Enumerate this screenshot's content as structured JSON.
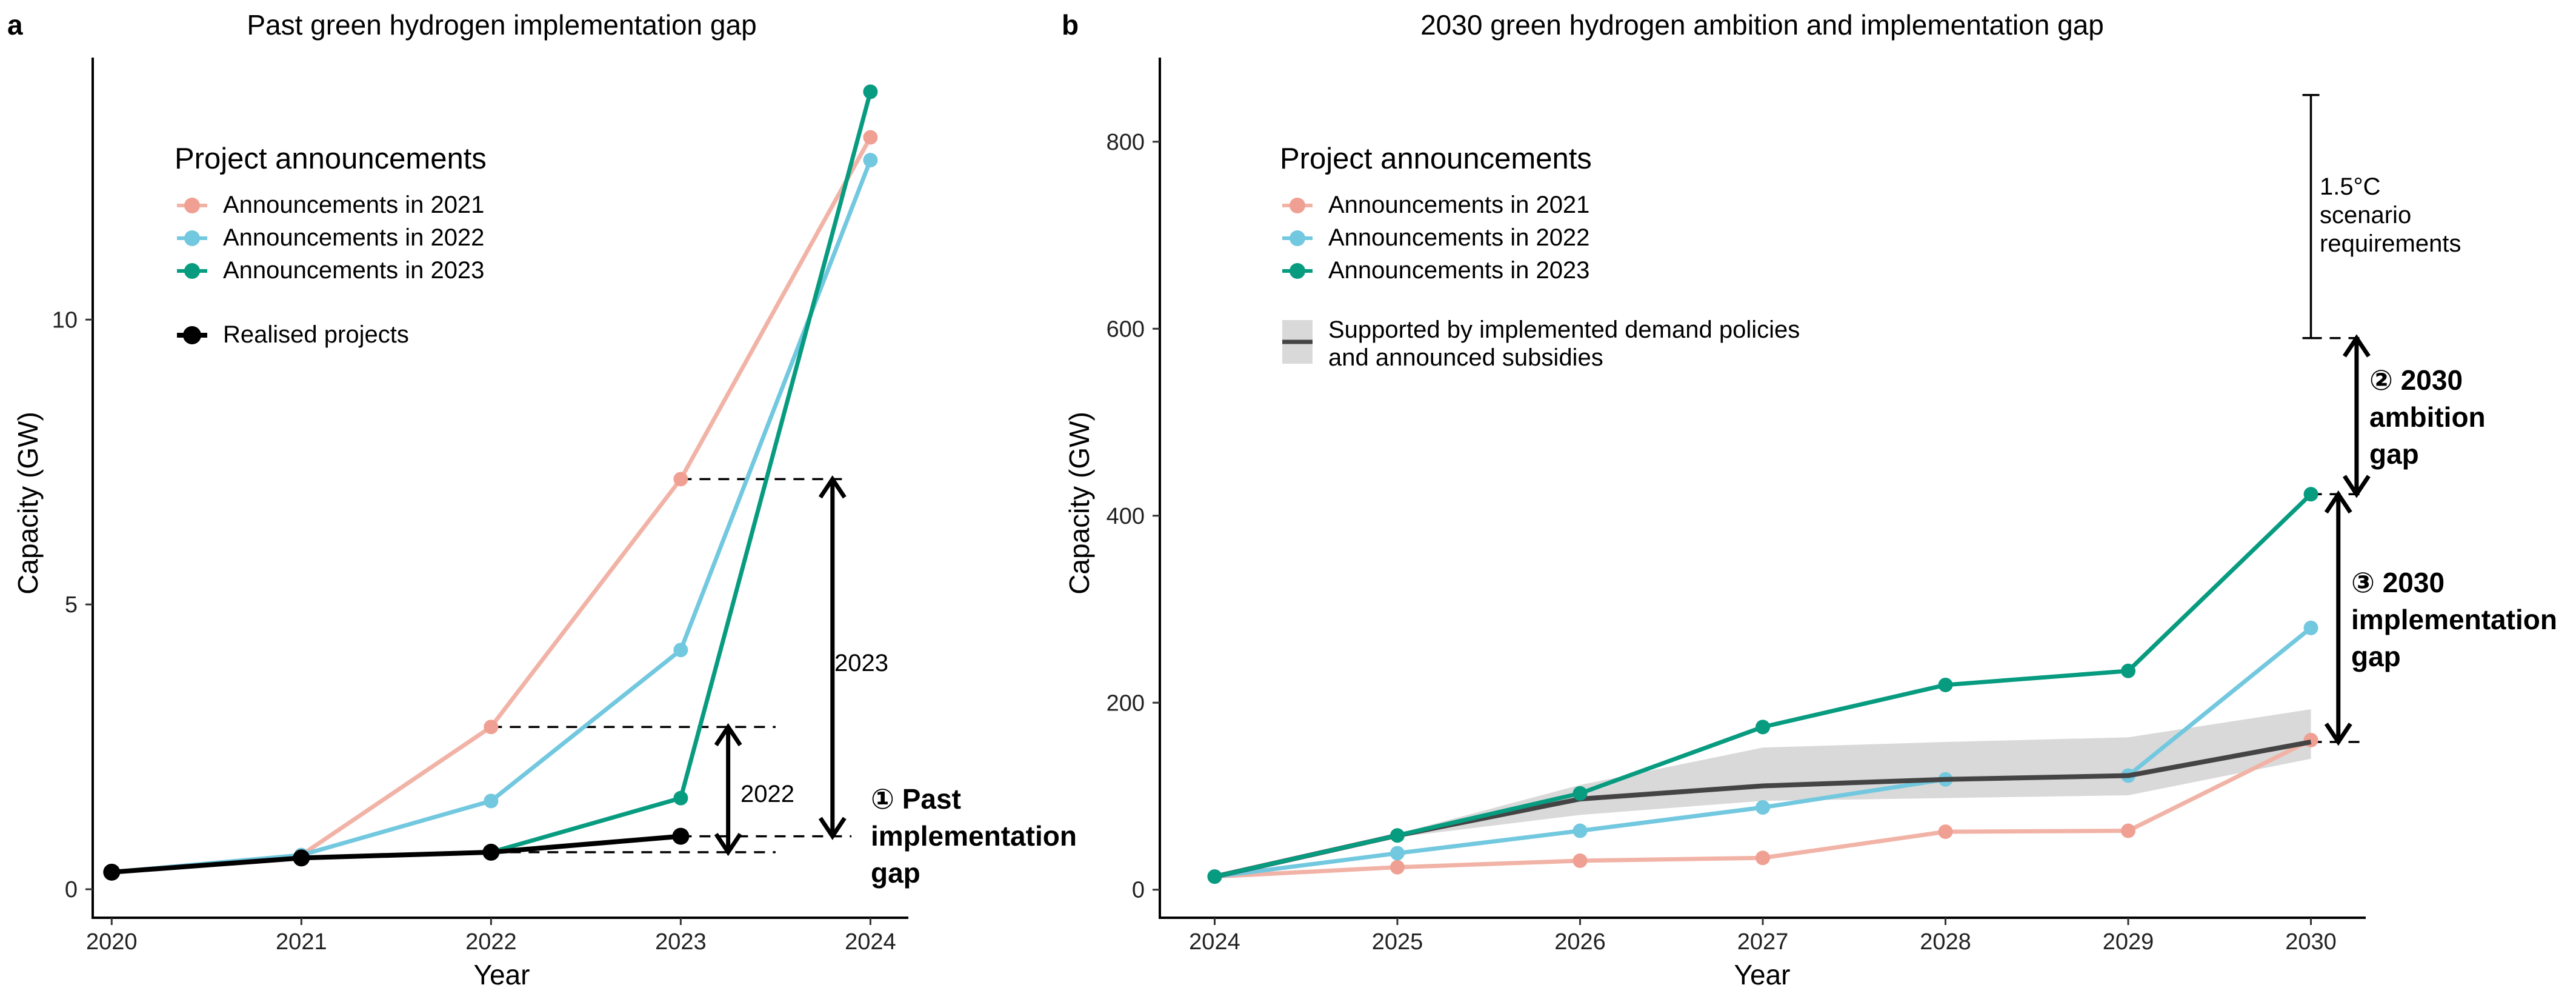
{
  "colors": {
    "announcements_2021": "#F0A093",
    "announcements_2021_line": "#F2B3A7",
    "announcements_2022": "#72C8DF",
    "announcements_2023": "#079B80",
    "realised": "#000000",
    "supported_line": "#444444",
    "supported_band": "#D9D9D9"
  },
  "chart_data": [
    {
      "panel": "a",
      "type": "line",
      "title": "Past green hydrogen implementation gap",
      "xlabel": "Year",
      "ylabel": "Capacity (GW)",
      "x": [
        2020,
        2021,
        2022,
        2023,
        2024
      ],
      "xlim": [
        2019.9,
        2024.2
      ],
      "ylim": [
        -0.5,
        14.6
      ],
      "yticks": [
        0,
        5,
        10
      ],
      "grid": false,
      "legend": {
        "position": "top-left",
        "title": "Project announcements",
        "entries": [
          "Announcements in 2021",
          "Announcements in 2022",
          "Announcements in 2023"
        ],
        "extra_entry": "Realised projects"
      },
      "series": [
        {
          "name": "Announcements in 2021",
          "key": "announcements_2021",
          "x": [
            2021,
            2022,
            2023,
            2024
          ],
          "values": [
            0.6,
            2.85,
            7.2,
            13.2
          ]
        },
        {
          "name": "Announcements in 2022",
          "key": "announcements_2022",
          "x": [
            2020,
            2021,
            2022,
            2023,
            2024
          ],
          "values": [
            0.3,
            0.6,
            1.55,
            4.2,
            12.8
          ]
        },
        {
          "name": "Announcements in 2023",
          "key": "announcements_2023",
          "x": [
            2022,
            2023,
            2024
          ],
          "values": [
            0.65,
            1.6,
            14.0
          ]
        },
        {
          "name": "Realised projects",
          "key": "realised",
          "x": [
            2020,
            2021,
            2022,
            2023
          ],
          "values": [
            0.3,
            0.55,
            0.65,
            0.93
          ]
        }
      ],
      "annotations": {
        "gap_2023": {
          "label": "2023",
          "x": 2023.8,
          "from": 0.93,
          "to": 7.2
        },
        "gap_2022": {
          "label": "2022",
          "x": 2023.25,
          "from": 0.65,
          "to": 2.85
        },
        "dashes": [
          {
            "x1": 2023.0,
            "x2": 2023.85,
            "y": 7.2
          },
          {
            "x1": 2022.0,
            "x2": 2023.5,
            "y": 2.85
          },
          {
            "x1": 2022.0,
            "x2": 2023.5,
            "y": 0.65
          },
          {
            "x1": 2023.0,
            "x2": 2023.9,
            "y": 0.93
          }
        ],
        "past_gap_label": [
          "① Past",
          "implementation",
          "gap"
        ]
      }
    },
    {
      "panel": "b",
      "type": "line",
      "title": "2030 green hydrogen ambition and implementation gap",
      "xlabel": "Year",
      "ylabel": "Capacity (GW)",
      "x": [
        2024,
        2025,
        2026,
        2027,
        2028,
        2029,
        2030
      ],
      "xlim": [
        2023.7,
        2030.3
      ],
      "ylim": [
        -30,
        890
      ],
      "yticks": [
        0,
        200,
        400,
        600,
        800
      ],
      "grid": false,
      "legend": {
        "position": "top-left",
        "title": "Project announcements",
        "entries": [
          "Announcements in 2021",
          "Announcements in 2022",
          "Announcements in 2023"
        ],
        "extra_entry_lines": [
          "Supported by implemented demand policies",
          "and announced subsidies"
        ]
      },
      "series": [
        {
          "name": "Announcements in 2021",
          "key": "announcements_2021",
          "x": [
            2024,
            2025,
            2026,
            2027,
            2028,
            2029,
            2030
          ],
          "values": [
            14,
            24,
            31,
            34,
            62,
            63,
            160
          ]
        },
        {
          "name": "Announcements in 2022",
          "key": "announcements_2022",
          "x": [
            2024,
            2025,
            2026,
            2027,
            2028,
            2029,
            2030
          ],
          "values": [
            14,
            39,
            63,
            88,
            118,
            122,
            280
          ]
        },
        {
          "name": "Announcements in 2023",
          "key": "announcements_2023",
          "x": [
            2024,
            2025,
            2026,
            2027,
            2028,
            2029,
            2030
          ],
          "values": [
            14,
            58,
            103,
            174,
            219,
            234,
            423
          ]
        }
      ],
      "supported": {
        "x": [
          2024,
          2025,
          2026,
          2027,
          2028,
          2029,
          2030
        ],
        "mid": [
          14,
          58,
          97,
          111,
          118,
          122,
          158
        ],
        "lower": [
          14,
          56,
          80,
          95,
          98,
          101,
          140
        ],
        "upper": [
          14,
          60,
          112,
          152,
          158,
          163,
          193
        ]
      },
      "annotations": {
        "scenario_bracket": {
          "x": 2030.0,
          "from": 590,
          "to": 850,
          "label": [
            "1.5°C",
            "scenario",
            "requirements"
          ]
        },
        "ambition_gap": {
          "x": 2030.25,
          "from": 423,
          "to": 590,
          "label": [
            "② 2030",
            "ambition",
            "gap"
          ]
        },
        "implementation_gap": {
          "x": 2030.15,
          "from": 158,
          "to": 423,
          "label": [
            "③ 2030",
            "implementation",
            "gap"
          ]
        },
        "dashes": [
          {
            "x1": 2030.0,
            "x2": 2030.3,
            "y": 590
          },
          {
            "x1": 2030.0,
            "x2": 2030.3,
            "y": 423
          },
          {
            "x1": 2030.0,
            "x2": 2030.3,
            "y": 158
          }
        ]
      }
    }
  ]
}
